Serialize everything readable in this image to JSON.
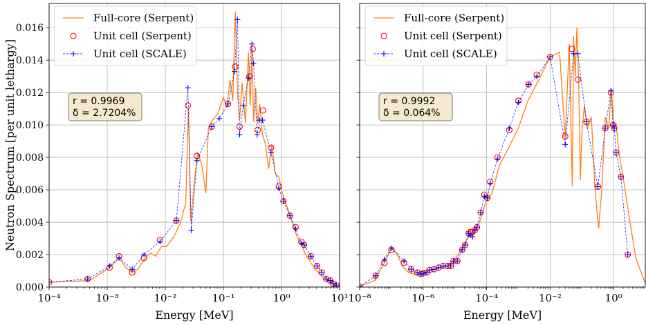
{
  "colors": {
    "full_core": "#ff7f0e",
    "unit_serpent": "#ff0000",
    "unit_scale": "#0000ff",
    "annot_fill": "#f5e9cf",
    "annot_edge": "#7a7a7a",
    "grid": "#b0b0b0"
  },
  "chart_data": [
    {
      "type": "line",
      "xscale": "log",
      "xlim": [
        0.0001,
        10
      ],
      "ylim": [
        0,
        0.0175
      ],
      "xlabel": "Energy [MeV]",
      "ylabel": "Neutron Spectrum [per unit lethargy]",
      "xtick_labels": [
        "10⁻⁴",
        "10⁻³",
        "10⁻²",
        "10⁻¹",
        "10⁰",
        "10¹"
      ],
      "ytick_labels": [
        "0.000",
        "0.002",
        "0.004",
        "0.006",
        "0.008",
        "0.010",
        "0.012",
        "0.014",
        "0.016"
      ],
      "grid": true,
      "legend_position": "top-left",
      "annotation": {
        "r": "0.9969",
        "delta": "2.7204%"
      },
      "series": [
        {
          "name": "Full-core (Serpent)",
          "style": "line",
          "x": [
            0.0001,
            0.0005,
            0.0011,
            0.0016,
            0.0021,
            0.0027,
            0.0034,
            0.0043,
            0.0055,
            0.0068,
            0.0085,
            0.0105,
            0.014,
            0.018,
            0.0225,
            0.025,
            0.0275,
            0.031,
            0.036,
            0.042,
            0.05,
            0.055,
            0.065,
            0.08,
            0.1,
            0.115,
            0.13,
            0.145,
            0.16,
            0.175,
            0.19,
            0.21,
            0.24,
            0.27,
            0.29,
            0.31,
            0.33,
            0.36,
            0.39,
            0.42,
            0.47,
            0.53,
            0.6,
            0.68,
            0.78,
            0.9,
            1.0,
            1.15,
            1.35,
            1.6,
            1.9,
            2.2,
            2.6,
            3.2,
            3.8,
            4.6,
            5.5,
            6.5,
            7.5,
            8.5,
            10
          ],
          "y": [
            0.0003,
            0.0004,
            0.0012,
            0.0018,
            0.0012,
            0.0009,
            0.0011,
            0.0017,
            0.0021,
            0.0019,
            0.0025,
            0.0025,
            0.0031,
            0.0039,
            0.0052,
            0.011,
            0.004,
            0.0062,
            0.0083,
            0.0076,
            0.0058,
            0.0098,
            0.0103,
            0.0107,
            0.0117,
            0.0111,
            0.0128,
            0.0115,
            0.017,
            0.0121,
            0.0103,
            0.0126,
            0.0101,
            0.0145,
            0.0112,
            0.0148,
            0.0102,
            0.0123,
            0.0101,
            0.0113,
            0.0094,
            0.0088,
            0.0073,
            0.0088,
            0.007,
            0.0068,
            0.006,
            0.0053,
            0.0046,
            0.0038,
            0.003,
            0.0026,
            0.002,
            0.0015,
            0.0011,
            0.0008,
            0.0005,
            0.00035,
            0.0002,
            0.00012,
            5e-05
          ]
        },
        {
          "name": "Unit cell (Serpent)",
          "style": "markers",
          "x": [
            0.0001,
            0.00046,
            0.0011,
            0.0016,
            0.0027,
            0.0043,
            0.0081,
            0.0155,
            0.0245,
            0.035,
            0.063,
            0.12,
            0.16,
            0.19,
            0.28,
            0.32,
            0.39,
            0.48,
            0.66,
            0.9,
            1.08,
            1.4,
            1.75,
            2.2,
            2.45,
            3.2,
            4.1,
            4.9,
            5.9,
            6.9,
            7.8,
            8.8
          ],
          "y": [
            0.0003,
            0.0005,
            0.0012,
            0.0019,
            0.0009,
            0.0018,
            0.0029,
            0.0041,
            0.0112,
            0.0081,
            0.0099,
            0.0113,
            0.0136,
            0.0099,
            0.013,
            0.0147,
            0.0097,
            0.0109,
            0.0086,
            0.0062,
            0.0053,
            0.0044,
            0.0037,
            0.0028,
            0.0026,
            0.0019,
            0.0013,
            0.0009,
            0.0005,
            0.0004,
            0.0002,
            0.0001
          ]
        },
        {
          "name": "Unit cell (SCALE)",
          "style": "line-markers",
          "x": [
            0.0001,
            0.00046,
            0.0011,
            0.0016,
            0.0027,
            0.0043,
            0.0081,
            0.0155,
            0.0245,
            0.028,
            0.035,
            0.063,
            0.085,
            0.12,
            0.155,
            0.175,
            0.19,
            0.22,
            0.27,
            0.31,
            0.33,
            0.38,
            0.42,
            0.47,
            0.66,
            0.9,
            1.08,
            1.4,
            1.75,
            2.2,
            2.45,
            3.2,
            4.1,
            4.9,
            5.9,
            6.9,
            7.8,
            8.8
          ],
          "y": [
            0.0003,
            0.0005,
            0.0013,
            0.0018,
            0.0011,
            0.002,
            0.0028,
            0.0041,
            0.0123,
            0.0035,
            0.0078,
            0.0099,
            0.0104,
            0.0113,
            0.0133,
            0.0165,
            0.0094,
            0.0112,
            0.0129,
            0.015,
            0.0138,
            0.0094,
            0.0103,
            0.0103,
            0.0083,
            0.0061,
            0.0053,
            0.0044,
            0.0036,
            0.0027,
            0.0026,
            0.0019,
            0.0013,
            0.0009,
            0.0005,
            0.0004,
            0.0002,
            0.0001
          ]
        }
      ]
    },
    {
      "type": "line",
      "xscale": "log",
      "xlim": [
        1e-08,
        10
      ],
      "ylim": [
        0,
        0.0175
      ],
      "xlabel": "Energy [MeV]",
      "ylabel": "",
      "xtick_labels": [
        "10⁻⁸",
        "10⁻⁶",
        "10⁻⁴",
        "10⁻²",
        "10⁰"
      ],
      "grid": true,
      "legend_position": "top-left",
      "annotation": {
        "r": "0.9992",
        "delta": "0.064%"
      },
      "series": [
        {
          "name": "Full-core (Serpent)",
          "style": "line",
          "x": [
            1e-08,
            3e-08,
            6e-08,
            1e-07,
            1.5e-07,
            2.2e-07,
            3.5e-07,
            5e-07,
            8e-07,
            1e-06,
            1.5e-06,
            2.2e-06,
            3.5e-06,
            6e-06,
            1e-05,
            1.6e-05,
            2.5e-05,
            4e-05,
            6e-05,
            0.0001,
            0.00015,
            0.00025,
            0.0005,
            0.001,
            0.002,
            0.005,
            0.01,
            0.02,
            0.03,
            0.04,
            0.05,
            0.055,
            0.062,
            0.07,
            0.08,
            0.09,
            0.1,
            0.12,
            0.15,
            0.2,
            0.26,
            0.34,
            0.43,
            0.55,
            0.7,
            0.85,
            1,
            1.2,
            1.5,
            2,
            3,
            5,
            10
          ],
          "y": [
            5e-05,
            0.0004,
            0.0015,
            0.0024,
            0.0021,
            0.0013,
            0.0009,
            0.0008,
            0.00075,
            0.00082,
            0.001,
            0.0011,
            0.0012,
            0.0013,
            0.0017,
            0.0023,
            0.003,
            0.0035,
            0.004,
            0.0054,
            0.0058,
            0.0075,
            0.0086,
            0.0098,
            0.0115,
            0.013,
            0.0142,
            0.0145,
            0.0092,
            0.015,
            0.0062,
            0.0155,
            0.013,
            0.016,
            0.0125,
            0.0066,
            0.0095,
            0.0112,
            0.0098,
            0.0105,
            0.006,
            0.0036,
            0.0062,
            0.0105,
            0.0098,
            0.0122,
            0.0101,
            0.0101,
            0.0082,
            0.0068,
            0.0045,
            0.0018,
            0.0002
          ]
        },
        {
          "name": "Unit cell (Serpent)",
          "style": "markers",
          "x": [
            1e-08,
            3.2e-08,
            6e-08,
            1e-07,
            2.5e-07,
            4.2e-07,
            6.5e-07,
            8.5e-07,
            1e-06,
            1.3e-06,
            1.6e-06,
            2.2e-06,
            3.1e-06,
            4.3e-06,
            6e-06,
            7.5e-06,
            9e-06,
            1.2e-05,
            1.7e-05,
            2.1e-05,
            2.7e-05,
            3.1e-05,
            3.6e-05,
            4.2e-05,
            5e-05,
            6.5e-05,
            8.5e-05,
            0.000105,
            0.00013,
            0.00022,
            0.00052,
            0.001,
            0.0021,
            0.0038,
            0.01,
            0.03,
            0.048,
            0.075,
            0.14,
            0.32,
            0.55,
            0.83,
            0.96,
            1.05,
            1.2,
            1.7,
            2.8
          ],
          "y": [
            2e-05,
            0.0007,
            0.0015,
            0.0023,
            0.0015,
            0.0011,
            0.0009,
            0.0008,
            0.00085,
            0.0009,
            0.00105,
            0.0011,
            0.0012,
            0.0013,
            0.0013,
            0.0013,
            0.0016,
            0.0016,
            0.0023,
            0.0026,
            0.0033,
            0.0034,
            0.0034,
            0.0035,
            0.0037,
            0.0046,
            0.0057,
            0.0055,
            0.0065,
            0.008,
            0.0097,
            0.0115,
            0.0125,
            0.0131,
            0.0142,
            0.0093,
            0.0147,
            0.0128,
            0.0102,
            0.0062,
            0.0098,
            0.012,
            0.01,
            0.0098,
            0.0083,
            0.0068,
            0.002
          ]
        },
        {
          "name": "Unit cell (SCALE)",
          "style": "line-markers",
          "x": [
            1e-08,
            3.2e-08,
            6e-08,
            1e-07,
            2.5e-07,
            4.2e-07,
            6.5e-07,
            8.5e-07,
            1e-06,
            1.3e-06,
            1.6e-06,
            2.2e-06,
            3.1e-06,
            4.3e-06,
            6e-06,
            7.5e-06,
            9e-06,
            1.2e-05,
            1.7e-05,
            2.1e-05,
            2.7e-05,
            3.1e-05,
            3.6e-05,
            4.2e-05,
            5e-05,
            6.5e-05,
            8.5e-05,
            0.000105,
            0.00013,
            0.00022,
            0.00052,
            0.001,
            0.0021,
            0.0038,
            0.01,
            0.03,
            0.055,
            0.075,
            0.14,
            0.32,
            0.55,
            0.83,
            0.96,
            1.05,
            1.2,
            1.7,
            2.8
          ],
          "y": [
            2e-05,
            0.0007,
            0.0017,
            0.0024,
            0.0016,
            0.0011,
            0.0009,
            0.0008,
            0.00085,
            0.0009,
            0.00105,
            0.0011,
            0.0012,
            0.0013,
            0.0013,
            0.0013,
            0.0016,
            0.0016,
            0.0023,
            0.0026,
            0.0033,
            0.0032,
            0.0031,
            0.0035,
            0.0037,
            0.0046,
            0.0056,
            0.0055,
            0.0064,
            0.0079,
            0.0098,
            0.0114,
            0.0125,
            0.013,
            0.0142,
            0.0088,
            0.0144,
            0.0144,
            0.0102,
            0.0062,
            0.0098,
            0.0121,
            0.01,
            0.0098,
            0.0083,
            0.0068,
            0.002
          ]
        }
      ]
    }
  ]
}
